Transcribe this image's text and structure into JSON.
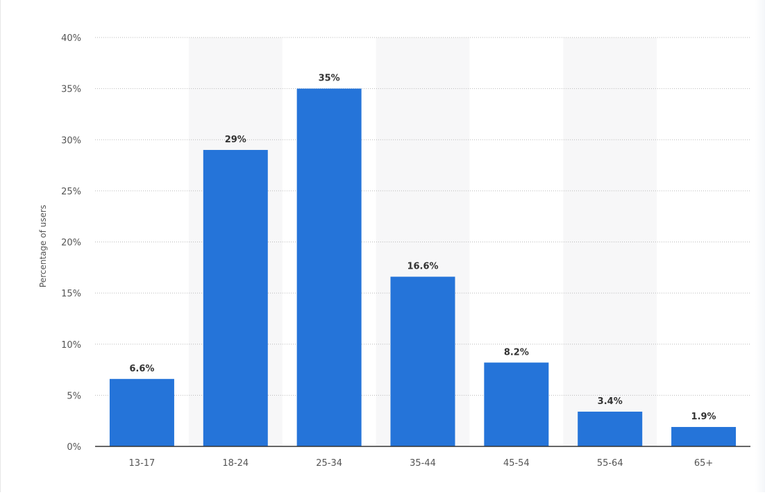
{
  "colors": {
    "bar": "#2574d9",
    "grid": "#b9b9b9",
    "band": "#f7f7f8",
    "axis": "#333333"
  },
  "chart_data": {
    "type": "bar",
    "categories": [
      "13-17",
      "18-24",
      "25-34",
      "35-44",
      "45-54",
      "55-64",
      "65+"
    ],
    "values": [
      6.6,
      29,
      35,
      16.6,
      8.2,
      3.4,
      1.9
    ],
    "data_labels": [
      "6.6%",
      "29%",
      "35%",
      "16.6%",
      "8.2%",
      "3.4%",
      "1.9%"
    ],
    "title": "",
    "xlabel": "",
    "ylabel": "Percentage of users",
    "ylim": [
      0,
      40
    ],
    "yticks": [
      0,
      5,
      10,
      15,
      20,
      25,
      30,
      35,
      40
    ],
    "ytick_labels": [
      "0%",
      "5%",
      "10%",
      "15%",
      "20%",
      "25%",
      "30%",
      "35%",
      "40%"
    ],
    "grid": true,
    "legend": "none"
  }
}
